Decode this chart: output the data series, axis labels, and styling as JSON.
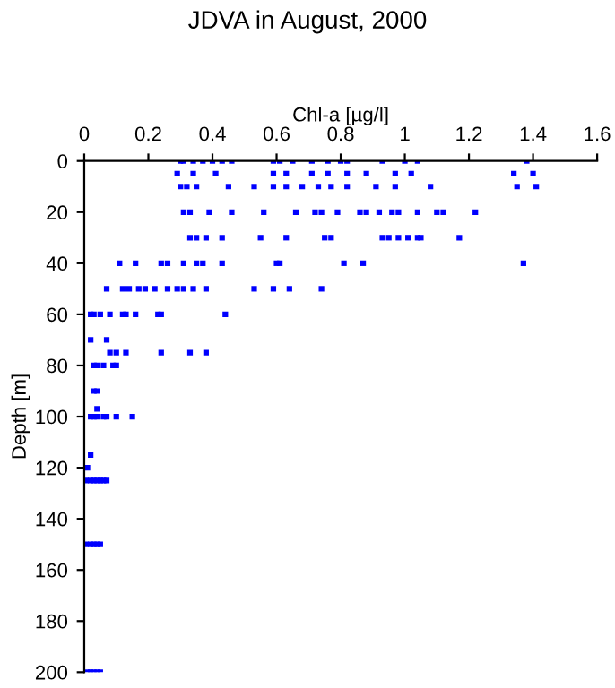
{
  "chart_data": {
    "type": "scatter",
    "title": "JDVA in August, 2000",
    "xlabel": "Chl-a [µg/l]",
    "ylabel": "Depth [m]",
    "xlim": [
      0,
      1.6
    ],
    "xticks": [
      0,
      0.2,
      0.4,
      0.6,
      0.8,
      1,
      1.2,
      1.4,
      1.6
    ],
    "ylim": [
      200,
      0
    ],
    "yticks": [
      0,
      20,
      40,
      60,
      80,
      100,
      120,
      140,
      160,
      180,
      200
    ],
    "grid": false,
    "legend": false,
    "marker": "square",
    "series": [
      {
        "color": "#0000ff",
        "x": [
          0.3,
          0.31,
          0.34,
          0.37,
          0.4,
          0.43,
          0.46,
          0.59,
          0.61,
          0.65,
          0.71,
          0.76,
          0.8,
          0.82,
          0.93,
          1.0,
          1.04,
          1.38,
          0.29,
          0.34,
          0.41,
          0.59,
          0.63,
          0.71,
          0.76,
          0.82,
          0.88,
          0.97,
          1.02,
          1.34,
          1.4,
          0.3,
          0.32,
          0.35,
          0.45,
          0.53,
          0.59,
          0.63,
          0.68,
          0.73,
          0.77,
          0.82,
          0.91,
          0.97,
          1.08,
          1.35,
          1.41,
          0.31,
          0.33,
          0.39,
          0.46,
          0.56,
          0.66,
          0.72,
          0.74,
          0.79,
          0.86,
          0.88,
          0.92,
          0.96,
          0.98,
          1.04,
          1.1,
          1.12,
          1.22,
          0.33,
          0.35,
          0.38,
          0.43,
          0.55,
          0.63,
          0.75,
          0.77,
          0.93,
          0.95,
          0.98,
          1.01,
          1.04,
          1.05,
          1.17,
          0.11,
          0.16,
          0.24,
          0.26,
          0.31,
          0.35,
          0.37,
          0.43,
          0.6,
          0.61,
          0.81,
          0.87,
          1.37,
          0.07,
          0.12,
          0.14,
          0.17,
          0.19,
          0.22,
          0.26,
          0.29,
          0.31,
          0.34,
          0.38,
          0.53,
          0.59,
          0.64,
          0.74,
          0.02,
          0.03,
          0.05,
          0.08,
          0.12,
          0.13,
          0.16,
          0.23,
          0.24,
          0.44,
          0.02,
          0.07,
          0.08,
          0.1,
          0.13,
          0.24,
          0.33,
          0.38,
          0.03,
          0.04,
          0.06,
          0.09,
          0.1,
          0.03,
          0.04,
          0.04,
          0.02,
          0.03,
          0.04,
          0.06,
          0.07,
          0.1,
          0.15,
          0.02,
          0.01,
          0.005,
          0.02,
          0.03,
          0.04,
          0.05,
          0.06,
          0.07,
          0.005,
          0.02,
          0.03,
          0.04,
          0.05,
          0.01,
          0.02,
          0.03,
          0.04,
          0.05
        ],
        "values": [
          0,
          0,
          0,
          0,
          0,
          0,
          0,
          0,
          0,
          0,
          0,
          0,
          0,
          0,
          0,
          0,
          0,
          0,
          5,
          5,
          5,
          5,
          5,
          5,
          5,
          5,
          5,
          5,
          5,
          5,
          5,
          10,
          10,
          10,
          10,
          10,
          10,
          10,
          10,
          10,
          10,
          10,
          10,
          10,
          10,
          10,
          10,
          20,
          20,
          20,
          20,
          20,
          20,
          20,
          20,
          20,
          20,
          20,
          20,
          20,
          20,
          20,
          20,
          20,
          20,
          30,
          30,
          30,
          30,
          30,
          30,
          30,
          30,
          30,
          30,
          30,
          30,
          30,
          30,
          30,
          40,
          40,
          40,
          40,
          40,
          40,
          40,
          40,
          40,
          40,
          40,
          40,
          40,
          50,
          50,
          50,
          50,
          50,
          50,
          50,
          50,
          50,
          50,
          50,
          50,
          50,
          50,
          50,
          60,
          60,
          60,
          60,
          60,
          60,
          60,
          60,
          60,
          60,
          70,
          70,
          75,
          75,
          75,
          75,
          75,
          75,
          80,
          80,
          80,
          80,
          80,
          90,
          90,
          97,
          100,
          100,
          100,
          100,
          100,
          100,
          100,
          115,
          120,
          125,
          125,
          125,
          125,
          125,
          125,
          125,
          150,
          150,
          150,
          150,
          150,
          200,
          200,
          200,
          200,
          200
        ]
      }
    ]
  }
}
